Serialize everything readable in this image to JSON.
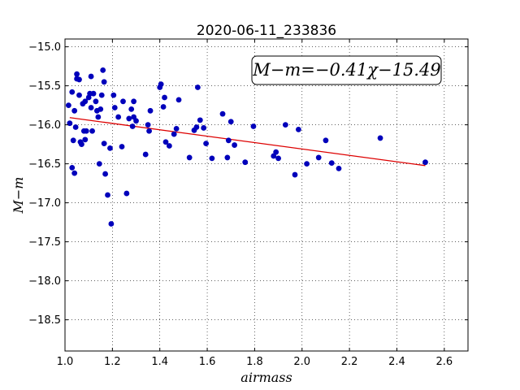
{
  "chart_data": {
    "type": "scatter",
    "title": "2020-06-11_233836",
    "xlabel": "airmass",
    "ylabel": "M−m",
    "xlim": [
      1.0,
      2.7
    ],
    "ylim": [
      -18.9,
      -14.9
    ],
    "y_inverted": true,
    "grid": true,
    "x_ticks": [
      "1.0",
      "1.2",
      "1.4",
      "1.6",
      "1.8",
      "2.0",
      "2.2",
      "2.4",
      "2.6"
    ],
    "y_ticks": [
      "−15.0",
      "−15.5",
      "−16.0",
      "−16.5",
      "−17.0",
      "−17.5",
      "−18.0",
      "−18.5"
    ],
    "annotation": "M−m=−0.41χ−15.49",
    "fit": {
      "slope": -0.41,
      "intercept": -15.49,
      "x_range": [
        1.02,
        2.52
      ],
      "color": "#dd0000"
    },
    "marker_color": "#0000bb",
    "points": [
      [
        1.015,
        -15.75
      ],
      [
        1.02,
        -15.98
      ],
      [
        1.03,
        -16.55
      ],
      [
        1.035,
        -16.2
      ],
      [
        1.04,
        -16.62
      ],
      [
        1.03,
        -15.58
      ],
      [
        1.04,
        -15.82
      ],
      [
        1.045,
        -16.03
      ],
      [
        1.05,
        -15.35
      ],
      [
        1.05,
        -15.41
      ],
      [
        1.06,
        -15.42
      ],
      [
        1.06,
        -15.62
      ],
      [
        1.065,
        -16.22
      ],
      [
        1.07,
        -16.25
      ],
      [
        1.075,
        -15.73
      ],
      [
        1.08,
        -16.08
      ],
      [
        1.085,
        -15.7
      ],
      [
        1.085,
        -16.19
      ],
      [
        1.09,
        -16.08
      ],
      [
        1.1,
        -15.65
      ],
      [
        1.105,
        -15.6
      ],
      [
        1.11,
        -15.78
      ],
      [
        1.11,
        -15.38
      ],
      [
        1.115,
        -16.08
      ],
      [
        1.12,
        -15.6
      ],
      [
        1.13,
        -15.7
      ],
      [
        1.135,
        -15.82
      ],
      [
        1.14,
        -15.9
      ],
      [
        1.145,
        -16.5
      ],
      [
        1.15,
        -15.8
      ],
      [
        1.155,
        -15.62
      ],
      [
        1.16,
        -15.3
      ],
      [
        1.165,
        -15.45
      ],
      [
        1.165,
        -16.24
      ],
      [
        1.17,
        -16.63
      ],
      [
        1.18,
        -16.9
      ],
      [
        1.19,
        -16.3
      ],
      [
        1.195,
        -17.27
      ],
      [
        1.205,
        -15.62
      ],
      [
        1.21,
        -15.78
      ],
      [
        1.225,
        -15.9
      ],
      [
        1.24,
        -16.28
      ],
      [
        1.245,
        -15.7
      ],
      [
        1.26,
        -16.88
      ],
      [
        1.27,
        -15.92
      ],
      [
        1.28,
        -15.8
      ],
      [
        1.285,
        -16.02
      ],
      [
        1.29,
        -15.9
      ],
      [
        1.29,
        -15.7
      ],
      [
        1.3,
        -15.95
      ],
      [
        1.34,
        -16.38
      ],
      [
        1.35,
        -16.0
      ],
      [
        1.355,
        -16.08
      ],
      [
        1.36,
        -15.82
      ],
      [
        1.4,
        -15.52
      ],
      [
        1.405,
        -15.48
      ],
      [
        1.415,
        -15.77
      ],
      [
        1.42,
        -15.65
      ],
      [
        1.425,
        -16.22
      ],
      [
        1.44,
        -16.27
      ],
      [
        1.46,
        -16.12
      ],
      [
        1.47,
        -16.05
      ],
      [
        1.48,
        -15.68
      ],
      [
        1.525,
        -16.42
      ],
      [
        1.545,
        -16.07
      ],
      [
        1.555,
        -16.03
      ],
      [
        1.56,
        -15.52
      ],
      [
        1.57,
        -15.94
      ],
      [
        1.585,
        -16.04
      ],
      [
        1.595,
        -16.24
      ],
      [
        1.62,
        -16.43
      ],
      [
        1.665,
        -15.86
      ],
      [
        1.685,
        -16.42
      ],
      [
        1.69,
        -16.2
      ],
      [
        1.7,
        -15.96
      ],
      [
        1.715,
        -16.26
      ],
      [
        1.76,
        -16.48
      ],
      [
        1.795,
        -16.02
      ],
      [
        1.88,
        -16.4
      ],
      [
        1.89,
        -16.35
      ],
      [
        1.9,
        -16.43
      ],
      [
        1.93,
        -16.0
      ],
      [
        1.97,
        -16.64
      ],
      [
        1.985,
        -16.06
      ],
      [
        2.02,
        -16.5
      ],
      [
        2.07,
        -16.42
      ],
      [
        2.1,
        -16.2
      ],
      [
        2.125,
        -16.49
      ],
      [
        2.155,
        -16.56
      ],
      [
        2.33,
        -16.17
      ],
      [
        2.52,
        -16.48
      ]
    ]
  }
}
